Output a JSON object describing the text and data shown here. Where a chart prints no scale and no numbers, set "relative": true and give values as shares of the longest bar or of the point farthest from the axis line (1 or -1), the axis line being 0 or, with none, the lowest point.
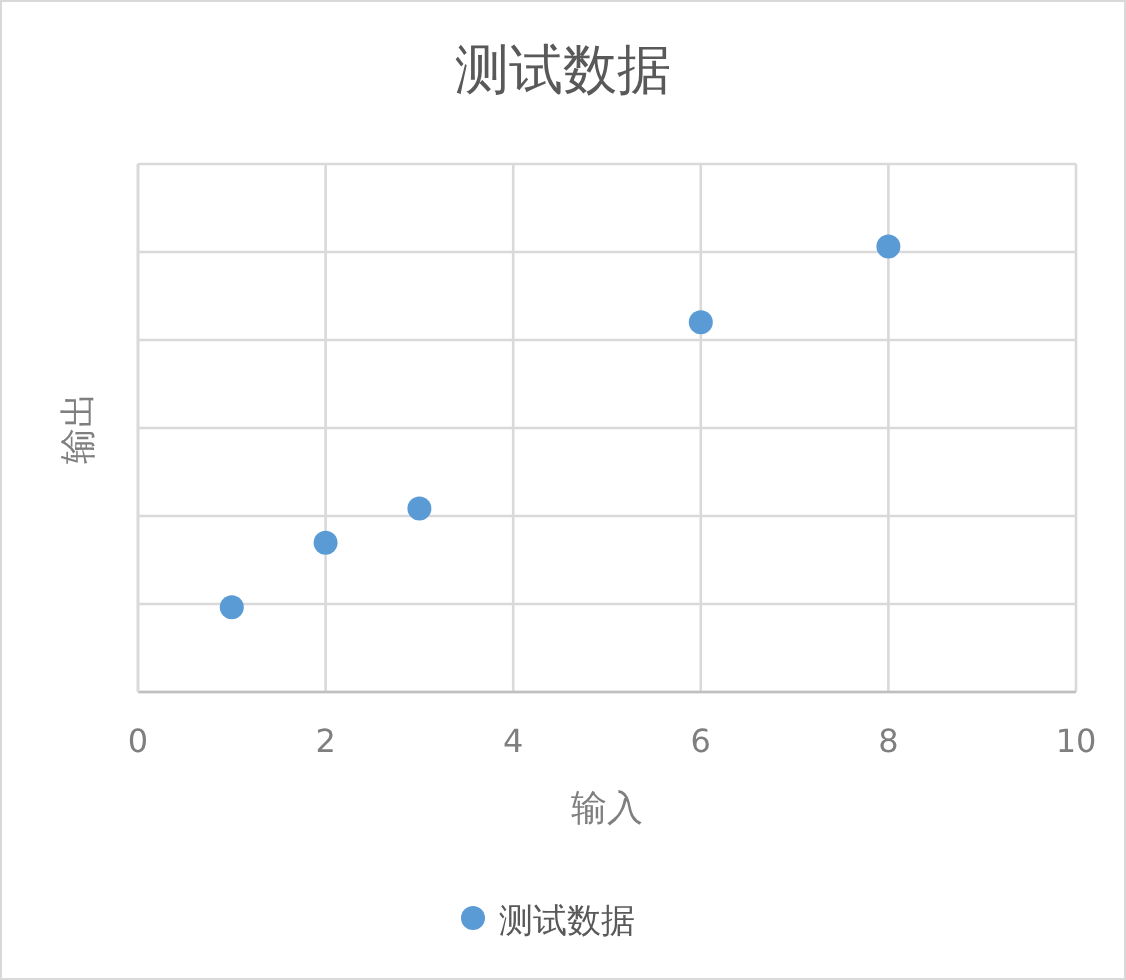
{
  "chart_data": {
    "type": "scatter",
    "title": "测试数据",
    "xlabel": "输入",
    "ylabel": "输出",
    "x": [
      1,
      2,
      3,
      6,
      8
    ],
    "series": [
      {
        "name": "测试数据",
        "color": "#5b9bd5",
        "values": [
          0.19,
          0.335,
          0.412,
          0.83,
          1
        ]
      }
    ],
    "relative": true,
    "xlim": [
      0,
      10
    ],
    "xticks": [
      0,
      2,
      4,
      6,
      8,
      10
    ],
    "grid": true,
    "legend": "bottom",
    "marker": "circle"
  }
}
